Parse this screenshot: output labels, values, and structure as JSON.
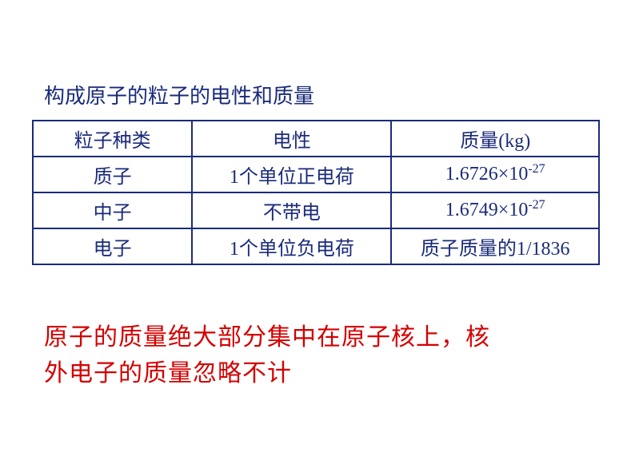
{
  "heading": "构成原子的粒子的电性和质量",
  "table": {
    "border_color": "#1a2b7a",
    "text_color": "#1a2b7a",
    "header_fontsize": 24,
    "cell_fontsize": 24,
    "columns": [
      "粒子种类",
      "电性",
      "质量(kg)"
    ],
    "rows": [
      {
        "type": "质子",
        "charge": "1个单位正电荷",
        "mass_base": "1.6726×10",
        "mass_exp": "-27"
      },
      {
        "type": "中子",
        "charge": "不带电",
        "mass_base": "1.6749×10",
        "mass_exp": "-27"
      },
      {
        "type": "电子",
        "charge": "1个单位负电荷",
        "mass_text": "质子质量的1/1836"
      }
    ]
  },
  "conclusion_line1": "原子的质量绝大部分集中在原子核上，核",
  "conclusion_line2": "外电子的质量忽略不计",
  "colors": {
    "heading": "#1a2b7a",
    "conclusion": "#d40000",
    "background": "#ffffff"
  }
}
